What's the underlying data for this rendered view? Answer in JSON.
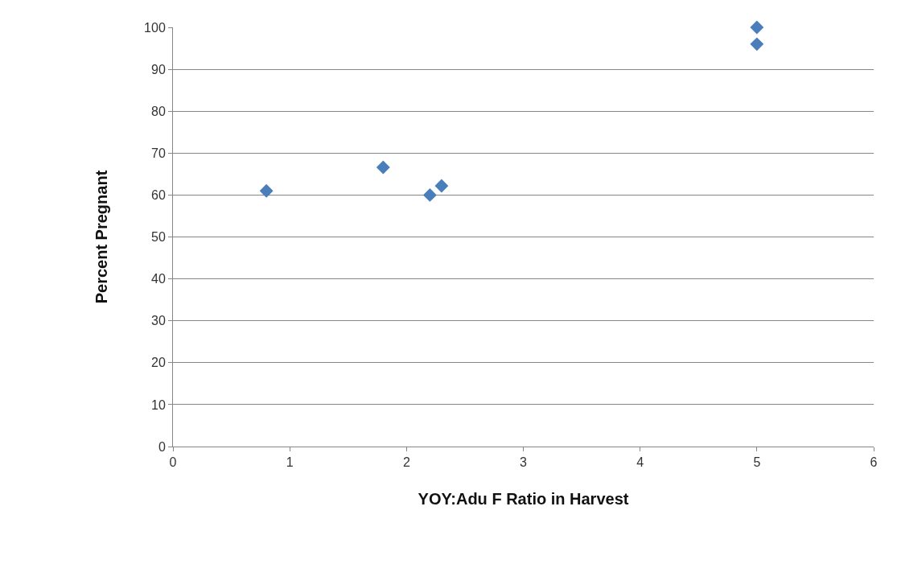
{
  "chart_data": {
    "type": "scatter",
    "xlabel": "YOY:Adu F Ratio in Harvest",
    "ylabel": "Percent Pregnant",
    "x": [
      0.8,
      1.8,
      2.2,
      2.3,
      5,
      5
    ],
    "series": [
      {
        "color": "#4a7ebb",
        "values": [
          61,
          66.6,
          60,
          62.2,
          100,
          96
        ]
      }
    ],
    "xlim": [
      0,
      6
    ],
    "xticks": [
      0,
      1,
      2,
      3,
      4,
      5,
      6
    ],
    "ylim": [
      0,
      100
    ],
    "yticks": [
      0,
      10,
      20,
      30,
      40,
      50,
      60,
      70,
      80,
      90,
      100
    ],
    "grid": "y",
    "marker": "diamond"
  }
}
